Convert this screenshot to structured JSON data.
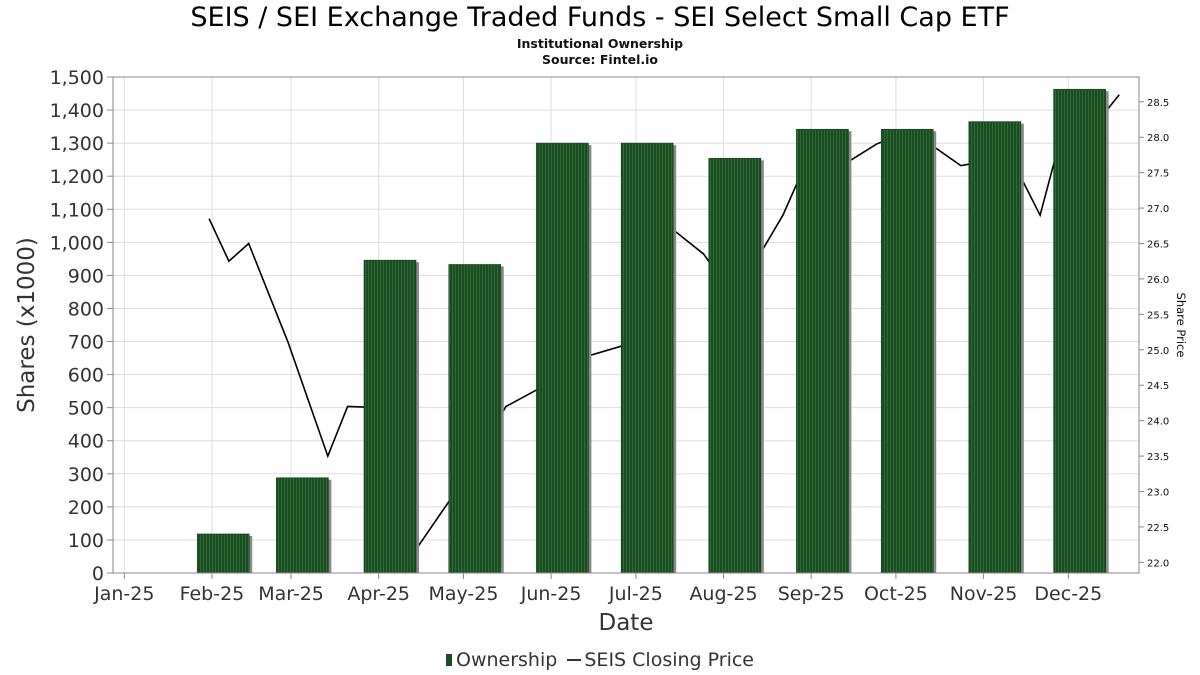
{
  "chart_data": {
    "type": "bar",
    "title": "SEIS / SEI Exchange Traded Funds - SEI Select Small Cap ETF",
    "subtitle": [
      "Institutional Ownership",
      "Source: Fintel.io"
    ],
    "xlabel": "Date",
    "ylabel": "Shares (x1000)",
    "y2label": "Share Price",
    "categories": [
      "Jan-25",
      "Feb-25",
      "Mar-25",
      "Apr-25",
      "May-25",
      "Jun-25",
      "Jul-25",
      "Aug-25",
      "Sep-25",
      "Oct-25",
      "Nov-25",
      "Dec-25"
    ],
    "ylim": [
      0,
      1500
    ],
    "yticks": [
      0,
      100,
      200,
      300,
      400,
      500,
      600,
      700,
      800,
      900,
      1000,
      1100,
      1200,
      1300,
      1400,
      1500
    ],
    "y2lim": [
      21.85,
      28.85
    ],
    "y2ticks": [
      22.0,
      22.5,
      23.0,
      23.5,
      24.0,
      24.5,
      25.0,
      25.5,
      26.0,
      26.5,
      27.0,
      27.5,
      28.0,
      28.5
    ],
    "grid": true,
    "legend_position": "bottom",
    "series": [
      {
        "name": "Ownership",
        "type": "bar",
        "color": "#1b4d22",
        "bars": [
          {
            "x": "2025-02-05",
            "value": 118
          },
          {
            "x": "2025-03-05",
            "value": 288
          },
          {
            "x": "2025-04-05",
            "value": 946
          },
          {
            "x": "2025-05-05",
            "value": 933
          },
          {
            "x": "2025-06-05",
            "value": 1300
          },
          {
            "x": "2025-07-05",
            "value": 1300
          },
          {
            "x": "2025-08-05",
            "value": 1254
          },
          {
            "x": "2025-09-05",
            "value": 1342
          },
          {
            "x": "2025-10-05",
            "value": 1342
          },
          {
            "x": "2025-11-05",
            "value": 1365
          },
          {
            "x": "2025-12-05",
            "value": 1463
          }
        ]
      },
      {
        "name": "SEIS Closing Price",
        "type": "line",
        "axis": "right",
        "color": "#000000",
        "points": [
          {
            "x": "2025-01-31",
            "y": 26.85
          },
          {
            "x": "2025-02-07",
            "y": 26.25
          },
          {
            "x": "2025-02-14",
            "y": 26.5
          },
          {
            "x": "2025-02-28",
            "y": 25.1
          },
          {
            "x": "2025-03-14",
            "y": 23.5
          },
          {
            "x": "2025-03-21",
            "y": 24.2
          },
          {
            "x": "2025-04-04",
            "y": 24.18
          },
          {
            "x": "2025-04-11",
            "y": 22.0
          },
          {
            "x": "2025-04-30",
            "y": 23.1
          },
          {
            "x": "2025-05-16",
            "y": 24.2
          },
          {
            "x": "2025-05-30",
            "y": 24.5
          },
          {
            "x": "2025-06-13",
            "y": 24.9
          },
          {
            "x": "2025-06-30",
            "y": 25.1
          },
          {
            "x": "2025-07-14",
            "y": 26.7
          },
          {
            "x": "2025-07-25",
            "y": 26.35
          },
          {
            "x": "2025-08-01",
            "y": 25.95
          },
          {
            "x": "2025-08-08",
            "y": 25.95
          },
          {
            "x": "2025-08-22",
            "y": 26.9
          },
          {
            "x": "2025-09-01",
            "y": 27.8
          },
          {
            "x": "2025-09-12",
            "y": 27.6
          },
          {
            "x": "2025-09-24",
            "y": 27.9
          },
          {
            "x": "2025-09-30",
            "y": 28.0
          },
          {
            "x": "2025-10-15",
            "y": 27.85
          },
          {
            "x": "2025-10-24",
            "y": 27.6
          },
          {
            "x": "2025-10-31",
            "y": 27.65
          },
          {
            "x": "2025-11-14",
            "y": 27.45
          },
          {
            "x": "2025-11-21",
            "y": 26.9
          },
          {
            "x": "2025-11-28",
            "y": 27.95
          },
          {
            "x": "2025-12-12",
            "y": 28.25
          },
          {
            "x": "2025-12-19",
            "y": 28.6
          }
        ]
      }
    ]
  }
}
